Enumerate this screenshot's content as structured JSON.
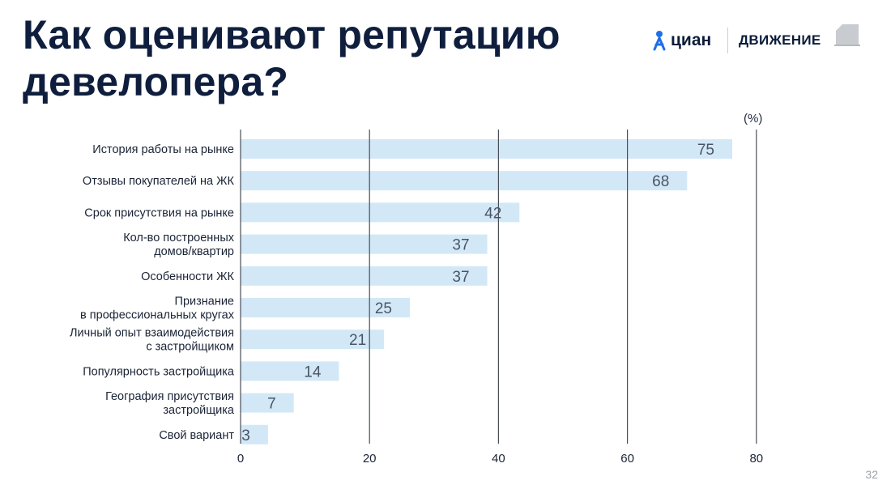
{
  "title_line1": "Как оценивают репутацию",
  "title_line2": "девелопера?",
  "logos": {
    "cian_label": "циан",
    "movement_label": "ДВИЖЕНИЕ",
    "cian_icon": "person-pin-icon",
    "movement_icon": "house-icon"
  },
  "unit_label": "(%)",
  "page_number": "32",
  "colors": {
    "bar": "#d3e8f7",
    "gridline": "#4a4f57",
    "title": "#0f1e3d"
  },
  "chart_data": {
    "type": "bar",
    "orientation": "horizontal",
    "categories": [
      [
        "История работы на рынке"
      ],
      [
        "Отзывы покупателей на ЖК"
      ],
      [
        "Срок присутствия на рынке"
      ],
      [
        "Кол-во построенных",
        "домов/квартир"
      ],
      [
        "Особенности ЖК"
      ],
      [
        "Признание",
        "в профессиональных кругах"
      ],
      [
        "Личный опыт взаимодействия",
        "с застройщиком"
      ],
      [
        "Популярность застройщика"
      ],
      [
        "География присутствия",
        "застройщика"
      ],
      [
        "Свой вариант"
      ]
    ],
    "values": [
      75,
      68,
      42,
      37,
      37,
      25,
      21,
      14,
      7,
      3
    ],
    "xlim": [
      0,
      80
    ],
    "xticks": [
      0,
      20,
      40,
      60,
      80
    ],
    "grid": true
  }
}
